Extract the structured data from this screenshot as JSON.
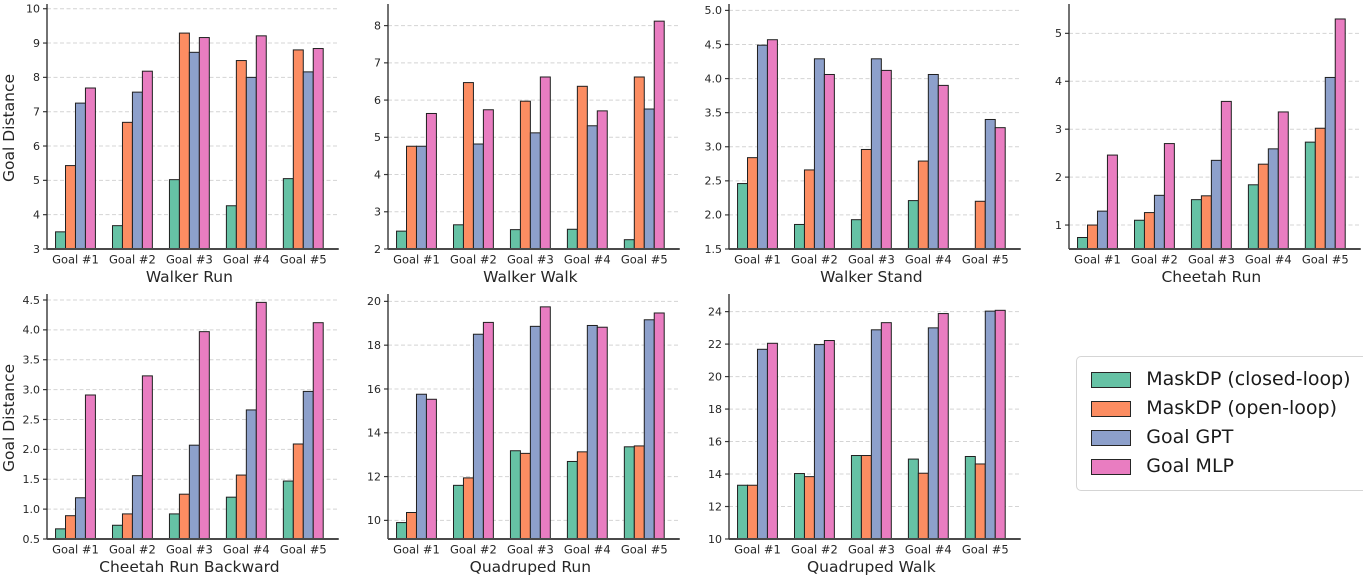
{
  "figure": {
    "background": "#ffffff",
    "grid_color": "#d4d4d4",
    "axis_color": "#3a3a3a",
    "bar_edge_color": "#1f1f1f",
    "shared_ylabel": "Goal Distance"
  },
  "legend": {
    "entries": [
      {
        "label": "MaskDP (closed-loop)",
        "color": "#66c2a5"
      },
      {
        "label": "MaskDP (open-loop)",
        "color": "#fc8d62"
      },
      {
        "label": "Goal GPT",
        "color": "#8da0cb"
      },
      {
        "label": "Goal MLP",
        "color": "#e97dc1"
      }
    ]
  },
  "chart_data": [
    {
      "type": "bar",
      "title": "Walker Run",
      "ylabel": "Goal Distance",
      "categories": [
        "Goal #1",
        "Goal #2",
        "Goal #3",
        "Goal #4",
        "Goal #5"
      ],
      "series": [
        {
          "name": "MaskDP (closed-loop)",
          "values": [
            3.5,
            3.68,
            5.02,
            4.26,
            5.05
          ]
        },
        {
          "name": "MaskDP (open-loop)",
          "values": [
            5.43,
            6.69,
            9.29,
            8.49,
            8.8
          ]
        },
        {
          "name": "Goal GPT",
          "values": [
            7.25,
            7.57,
            8.73,
            8.0,
            8.16
          ]
        },
        {
          "name": "Goal MLP",
          "values": [
            7.69,
            8.18,
            9.16,
            9.21,
            8.84
          ]
        }
      ],
      "ylim": [
        3,
        10.05
      ],
      "yticks": [
        3,
        4,
        5,
        6,
        7,
        8,
        9,
        10
      ],
      "ytick_labels": [
        "3",
        "4",
        "5",
        "6",
        "7",
        "8",
        "9",
        "10"
      ],
      "grid": true
    },
    {
      "type": "bar",
      "title": "Walker Walk",
      "ylabel": "",
      "categories": [
        "Goal #1",
        "Goal #2",
        "Goal #3",
        "Goal #4",
        "Goal #5"
      ],
      "series": [
        {
          "name": "MaskDP (closed-loop)",
          "values": [
            2.48,
            2.65,
            2.52,
            2.53,
            2.25
          ]
        },
        {
          "name": "MaskDP (open-loop)",
          "values": [
            4.76,
            6.47,
            5.97,
            6.37,
            6.62
          ]
        },
        {
          "name": "Goal GPT",
          "values": [
            4.76,
            4.82,
            5.12,
            5.31,
            5.76
          ]
        },
        {
          "name": "Goal MLP",
          "values": [
            5.64,
            5.74,
            6.62,
            5.71,
            8.12
          ]
        }
      ],
      "ylim": [
        2,
        8.5
      ],
      "yticks": [
        2,
        3,
        4,
        5,
        6,
        7,
        8
      ],
      "ytick_labels": [
        "2",
        "3",
        "4",
        "5",
        "6",
        "7",
        "8"
      ],
      "grid": true
    },
    {
      "type": "bar",
      "title": "Walker Stand",
      "ylabel": "",
      "categories": [
        "Goal #1",
        "Goal #2",
        "Goal #3",
        "Goal #4",
        "Goal #5"
      ],
      "series": [
        {
          "name": "MaskDP (closed-loop)",
          "values": [
            2.46,
            1.86,
            1.93,
            2.21,
            null
          ]
        },
        {
          "name": "MaskDP (open-loop)",
          "values": [
            2.84,
            2.66,
            2.96,
            2.79,
            2.2
          ]
        },
        {
          "name": "Goal GPT",
          "values": [
            4.49,
            4.29,
            4.29,
            4.06,
            3.4
          ]
        },
        {
          "name": "Goal MLP",
          "values": [
            4.57,
            4.06,
            4.12,
            3.9,
            3.28
          ]
        }
      ],
      "ylim": [
        1.5,
        5.05
      ],
      "yticks": [
        1.5,
        2.0,
        2.5,
        3.0,
        3.5,
        4.0,
        4.5,
        5.0
      ],
      "ytick_labels": [
        "1.5",
        "2.0",
        "2.5",
        "3.0",
        "3.5",
        "4.0",
        "4.5",
        "5.0"
      ],
      "grid": true
    },
    {
      "type": "bar",
      "title": "Cheetah Run",
      "ylabel": "",
      "categories": [
        "Goal #1",
        "Goal #2",
        "Goal #3",
        "Goal #4",
        "Goal #5"
      ],
      "series": [
        {
          "name": "MaskDP (closed-loop)",
          "values": [
            0.74,
            1.1,
            1.53,
            1.84,
            2.73
          ]
        },
        {
          "name": "MaskDP (open-loop)",
          "values": [
            1.0,
            1.26,
            1.61,
            2.27,
            3.02
          ]
        },
        {
          "name": "Goal GPT",
          "values": [
            1.29,
            1.62,
            2.35,
            2.59,
            4.08
          ]
        },
        {
          "name": "Goal MLP",
          "values": [
            2.46,
            2.7,
            3.58,
            3.36,
            5.3
          ]
        }
      ],
      "ylim": [
        0.5,
        5.55
      ],
      "yticks": [
        1,
        2,
        3,
        4,
        5
      ],
      "ytick_labels": [
        "1",
        "2",
        "3",
        "4",
        "5"
      ],
      "grid": true
    },
    {
      "type": "bar",
      "title": "Cheetah Run Backward",
      "ylabel": "Goal Distance",
      "categories": [
        "Goal #1",
        "Goal #2",
        "Goal #3",
        "Goal #4",
        "Goal #5"
      ],
      "series": [
        {
          "name": "MaskDP (closed-loop)",
          "values": [
            0.67,
            0.73,
            0.92,
            1.2,
            1.47
          ]
        },
        {
          "name": "MaskDP (open-loop)",
          "values": [
            0.89,
            0.92,
            1.25,
            1.57,
            2.09
          ]
        },
        {
          "name": "Goal GPT",
          "values": [
            1.19,
            1.56,
            2.07,
            2.66,
            2.97
          ]
        },
        {
          "name": "Goal MLP",
          "values": [
            2.91,
            3.23,
            3.97,
            4.46,
            4.12
          ]
        }
      ],
      "ylim": [
        0.5,
        4.55
      ],
      "yticks": [
        0.5,
        1.0,
        1.5,
        2.0,
        2.5,
        3.0,
        3.5,
        4.0,
        4.5
      ],
      "ytick_labels": [
        "0.5",
        "1.0",
        "1.5",
        "2.0",
        "2.5",
        "3.0",
        "3.5",
        "4.0",
        "4.5"
      ],
      "grid": true
    },
    {
      "type": "bar",
      "title": "Quadruped Run",
      "ylabel": "",
      "categories": [
        "Goal #1",
        "Goal #2",
        "Goal #3",
        "Goal #4",
        "Goal #5"
      ],
      "series": [
        {
          "name": "MaskDP (closed-loop)",
          "values": [
            9.9,
            11.6,
            13.18,
            12.69,
            13.36
          ]
        },
        {
          "name": "MaskDP (open-loop)",
          "values": [
            10.36,
            11.94,
            13.06,
            13.13,
            13.4
          ]
        },
        {
          "name": "Goal GPT",
          "values": [
            15.76,
            18.5,
            18.86,
            18.9,
            19.16
          ]
        },
        {
          "name": "Goal MLP",
          "values": [
            15.53,
            19.04,
            19.75,
            18.82,
            19.47
          ]
        }
      ],
      "ylim": [
        9.15,
        20.2
      ],
      "yticks": [
        10,
        12,
        14,
        16,
        18,
        20
      ],
      "ytick_labels": [
        "10",
        "12",
        "14",
        "16",
        "18",
        "20"
      ],
      "grid": true
    },
    {
      "type": "bar",
      "title": "Quadruped Walk",
      "ylabel": "",
      "categories": [
        "Goal #1",
        "Goal #2",
        "Goal #3",
        "Goal #4",
        "Goal #5"
      ],
      "series": [
        {
          "name": "MaskDP (closed-loop)",
          "values": [
            13.31,
            14.03,
            15.14,
            14.92,
            15.08
          ]
        },
        {
          "name": "MaskDP (open-loop)",
          "values": [
            13.31,
            13.84,
            15.14,
            14.05,
            14.62
          ]
        },
        {
          "name": "Goal GPT",
          "values": [
            21.68,
            21.97,
            22.88,
            23.0,
            24.03
          ]
        },
        {
          "name": "Goal MLP",
          "values": [
            22.05,
            22.22,
            23.32,
            23.88,
            24.08
          ]
        }
      ],
      "ylim": [
        10,
        24.9
      ],
      "yticks": [
        10,
        12,
        14,
        16,
        18,
        20,
        22,
        24
      ],
      "ytick_labels": [
        "10",
        "12",
        "14",
        "16",
        "18",
        "20",
        "22",
        "24"
      ],
      "grid": true
    }
  ]
}
